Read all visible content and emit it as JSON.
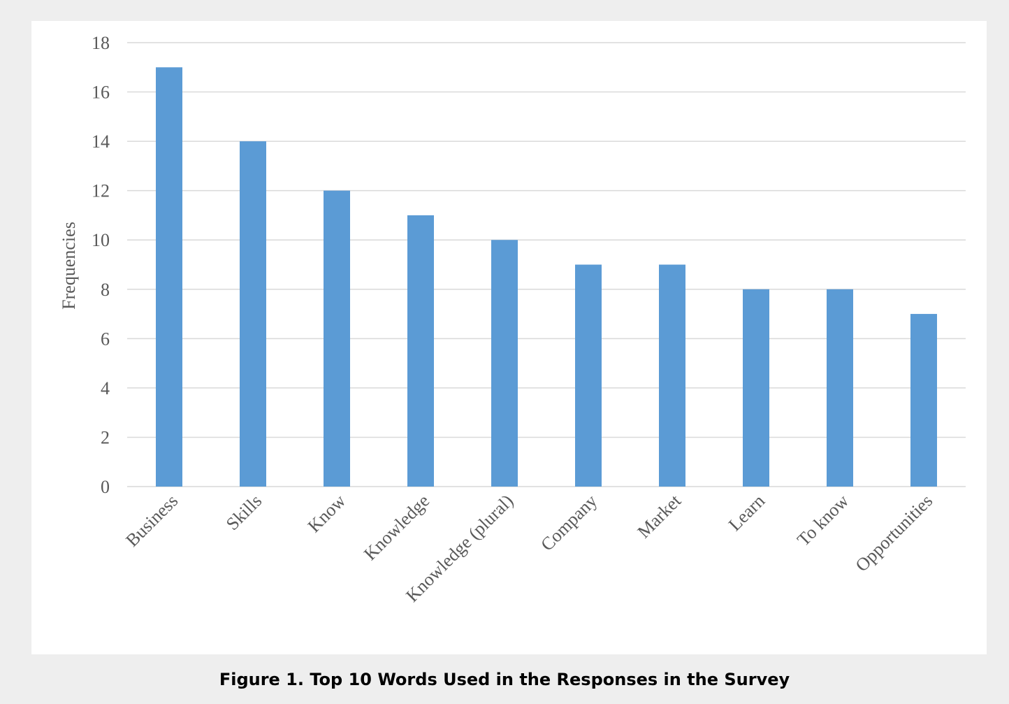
{
  "caption": "Figure 1. Top 10 Words Used in the Responses in the Survey",
  "chart_data": {
    "type": "bar",
    "title": "",
    "xlabel": "",
    "ylabel": "Frequencies",
    "categories": [
      "Business",
      "Skills",
      "Know",
      "Knowledge",
      "Knowledge (plural)",
      "Company",
      "Market",
      "Learn",
      "To know",
      "Opportunities"
    ],
    "values": [
      17,
      14,
      12,
      11,
      10,
      9,
      9,
      8,
      8,
      7
    ],
    "ylim": [
      0,
      18
    ],
    "yticks": [
      0,
      2,
      4,
      6,
      8,
      10,
      12,
      14,
      16,
      18
    ],
    "grid": true,
    "legend": "none",
    "bar_color": "#5b9bd5",
    "grid_color": "#d9d9d9",
    "text_color": "#595959"
  }
}
